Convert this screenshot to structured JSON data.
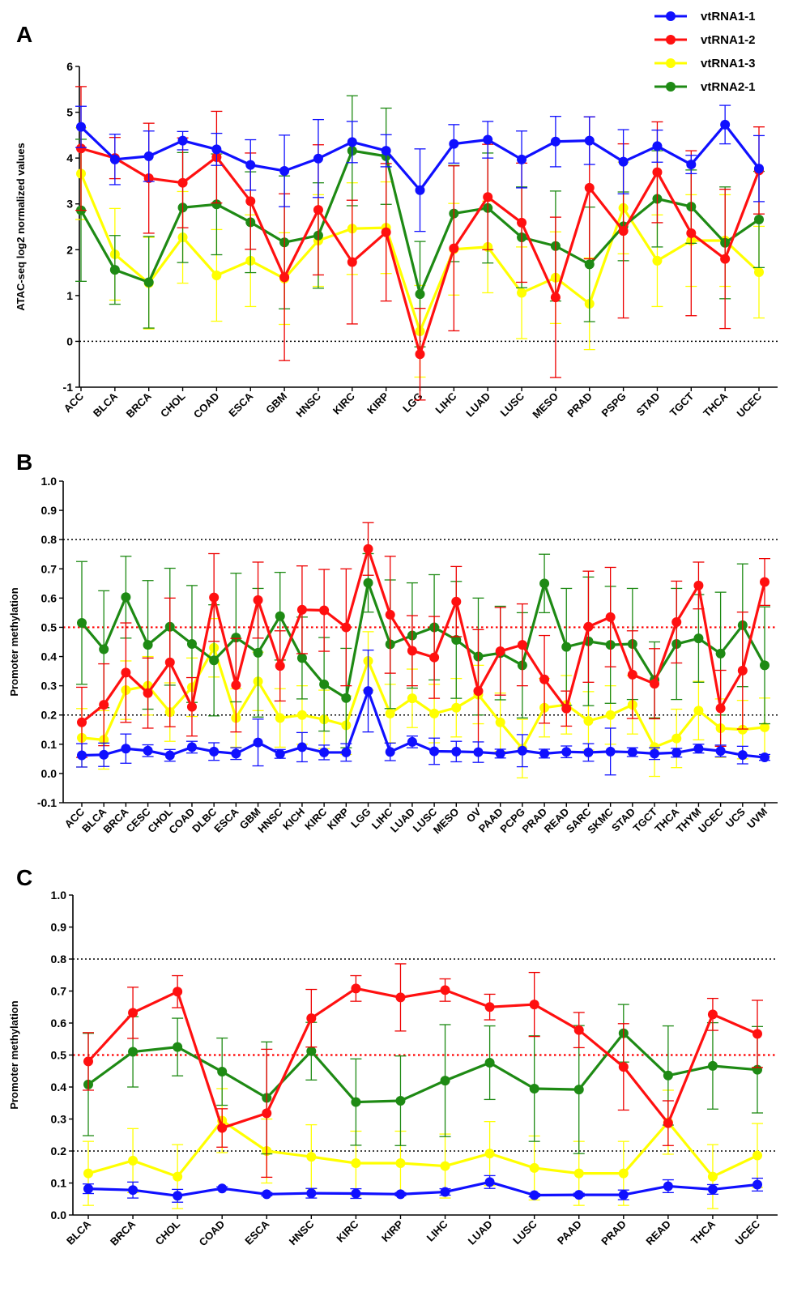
{
  "legend": [
    {
      "name": "vtRNA1-1",
      "color": "#1010ff"
    },
    {
      "name": "vtRNA1-2",
      "color": "#ff1010"
    },
    {
      "name": "vtRNA1-3",
      "color": "#ffff00"
    },
    {
      "name": "vtRNA2-1",
      "color": "#1e8a14"
    }
  ],
  "chart_data": [
    {
      "panel": "A",
      "type": "line",
      "ylabel": "ATAC-seq log2 normalized values",
      "ylim": [
        -1,
        6
      ],
      "yticks": [
        -1,
        0,
        1,
        2,
        3,
        4,
        5,
        6
      ],
      "reference_lines": [
        {
          "y": 0,
          "color": "#000000"
        }
      ],
      "categories": [
        "ACC",
        "BLCA",
        "BRCA",
        "CHOL",
        "COAD",
        "ESCA",
        "GBM",
        "HNSC",
        "KIRC",
        "KIRP",
        "LGG",
        "LIHC",
        "LUAD",
        "LUSC",
        "MESO",
        "PRAD",
        "PSPG",
        "STAD",
        "TGCT",
        "THCA",
        "UCEC"
      ],
      "series": [
        {
          "name": "vtRNA1-1",
          "values": [
            4.68,
            3.97,
            4.04,
            4.38,
            4.19,
            3.85,
            3.72,
            3.99,
            4.35,
            4.16,
            3.3,
            4.31,
            4.4,
            3.97,
            4.36,
            4.38,
            3.92,
            4.26,
            3.86,
            4.73,
            3.77
          ],
          "errors": [
            0.45,
            0.55,
            0.55,
            0.2,
            0.35,
            0.55,
            0.78,
            0.85,
            0.45,
            0.35,
            0.9,
            0.42,
            0.4,
            0.62,
            0.55,
            0.52,
            0.7,
            0.35,
            0.2,
            0.42,
            0.72
          ]
        },
        {
          "name": "vtRNA1-2",
          "values": [
            4.21,
            4.0,
            3.56,
            3.46,
            4.02,
            3.06,
            1.4,
            2.87,
            1.73,
            2.38,
            -0.28,
            2.03,
            3.15,
            2.59,
            0.96,
            3.35,
            2.41,
            3.69,
            2.36,
            1.8,
            3.73
          ],
          "errors": [
            1.35,
            0.45,
            1.2,
            0.98,
            1.0,
            1.05,
            1.82,
            1.42,
            1.35,
            1.5,
            1.0,
            1.8,
            1.15,
            1.3,
            1.75,
            1.55,
            1.9,
            1.1,
            1.8,
            1.52,
            0.95
          ]
        },
        {
          "name": "vtRNA1-3",
          "values": [
            3.66,
            1.9,
            1.27,
            2.27,
            1.44,
            1.76,
            1.37,
            2.2,
            2.46,
            2.48,
            0.22,
            2.01,
            2.06,
            1.06,
            1.39,
            0.82,
            2.91,
            1.76,
            2.2,
            2.2,
            1.51
          ]
        },
        {
          "name": "vtRNA2-1",
          "values": [
            2.86,
            1.56,
            1.29,
            2.92,
            2.99,
            2.6,
            2.16,
            2.31,
            4.16,
            4.04,
            1.03,
            2.79,
            2.91,
            2.27,
            2.08,
            1.68,
            2.51,
            3.11,
            2.94,
            2.15,
            2.66
          ],
          "errors": [
            1.55,
            0.75,
            1.0,
            1.2,
            1.1,
            1.1,
            1.45,
            1.15,
            1.2,
            1.05,
            1.15,
            1.05,
            1.2,
            1.1,
            1.2,
            1.25,
            0.75,
            1.05,
            0.8,
            1.22,
            1.05
          ]
        }
      ]
    },
    {
      "panel": "B",
      "type": "line",
      "ylabel": "Promoter methylation",
      "ylim": [
        -0.1,
        1.0
      ],
      "yticks": [
        -0.1,
        0.0,
        0.1,
        0.2,
        0.3,
        0.4,
        0.5,
        0.6,
        0.7,
        0.8,
        0.9,
        1.0
      ],
      "reference_lines": [
        {
          "y": 0.2,
          "color": "#000000"
        },
        {
          "y": 0.5,
          "color": "#ff0000"
        },
        {
          "y": 0.8,
          "color": "#000000"
        }
      ],
      "categories": [
        "ACC",
        "BLCA",
        "BRCA",
        "CESC",
        "CHOL",
        "COAD",
        "DLBC",
        "ESCA",
        "GBM",
        "HNSC",
        "KICH",
        "KIRC",
        "KIRP",
        "LGG",
        "LIHC",
        "LUAD",
        "LUSC",
        "MESO",
        "OV",
        "PAAD",
        "PCPG",
        "PRAD",
        "READ",
        "SARC",
        "SKMC",
        "STAD",
        "TGCT",
        "THCA",
        "THYM",
        "UCEC",
        "UCS",
        "UVM"
      ],
      "series": [
        {
          "name": "vtRNA1-1",
          "values": [
            0.062,
            0.064,
            0.085,
            0.078,
            0.062,
            0.09,
            0.075,
            0.068,
            0.106,
            0.067,
            0.09,
            0.072,
            0.072,
            0.282,
            0.074,
            0.108,
            0.076,
            0.075,
            0.073,
            0.068,
            0.078,
            0.068,
            0.074,
            0.072,
            0.075,
            0.073,
            0.068,
            0.071,
            0.085,
            0.077,
            0.063,
            0.055
          ],
          "errors": [
            0.04,
            0.04,
            0.05,
            0.02,
            0.02,
            0.02,
            0.03,
            0.02,
            0.08,
            0.015,
            0.05,
            0.025,
            0.03,
            0.14,
            0.03,
            0.02,
            0.045,
            0.035,
            0.035,
            0.015,
            0.055,
            0.015,
            0.02,
            0.03,
            0.08,
            0.015,
            0.02,
            0.015,
            0.015,
            0.02,
            0.03,
            0.01
          ]
        },
        {
          "name": "vtRNA1-2",
          "values": [
            0.175,
            0.235,
            0.345,
            0.275,
            0.38,
            0.228,
            0.602,
            0.302,
            0.593,
            0.368,
            0.56,
            0.558,
            0.5,
            0.768,
            0.543,
            0.42,
            0.397,
            0.588,
            0.282,
            0.418,
            0.44,
            0.322,
            0.222,
            0.502,
            0.535,
            0.338,
            0.307,
            0.518,
            0.643,
            0.223,
            0.352,
            0.655
          ],
          "errors": [
            0.12,
            0.14,
            0.17,
            0.12,
            0.22,
            0.1,
            0.15,
            0.16,
            0.13,
            0.12,
            0.15,
            0.14,
            0.2,
            0.09,
            0.2,
            0.12,
            0.14,
            0.12,
            0.21,
            0.15,
            0.14,
            0.15,
            0.06,
            0.19,
            0.17,
            0.15,
            0.12,
            0.14,
            0.08,
            0.13,
            0.2,
            0.08
          ]
        },
        {
          "name": "vtRNA1-3",
          "values": [
            0.122,
            0.115,
            0.285,
            0.3,
            0.21,
            0.295,
            0.43,
            0.19,
            0.315,
            0.19,
            0.2,
            0.185,
            0.165,
            0.385,
            0.205,
            0.257,
            0.205,
            0.225,
            0.27,
            0.175,
            0.085,
            0.225,
            0.235,
            0.18,
            0.2,
            0.235,
            0.09,
            0.12,
            0.215,
            0.155,
            0.15,
            0.158
          ]
        },
        {
          "name": "vtRNA2-1",
          "values": [
            0.515,
            0.425,
            0.603,
            0.44,
            0.502,
            0.443,
            0.387,
            0.465,
            0.413,
            0.538,
            0.395,
            0.305,
            0.258,
            0.652,
            0.442,
            0.472,
            0.5,
            0.457,
            0.4,
            0.412,
            0.37,
            0.65,
            0.433,
            0.452,
            0.44,
            0.443,
            0.32,
            0.443,
            0.462,
            0.41,
            0.507,
            0.37
          ],
          "errors": [
            0.21,
            0.2,
            0.14,
            0.22,
            0.2,
            0.2,
            0.19,
            0.22,
            0.22,
            0.15,
            0.14,
            0.16,
            0.17,
            0.1,
            0.22,
            0.18,
            0.18,
            0.2,
            0.2,
            0.16,
            0.18,
            0.1,
            0.2,
            0.22,
            0.2,
            0.19,
            0.13,
            0.19,
            0.15,
            0.21,
            0.21,
            0.2
          ]
        }
      ]
    },
    {
      "panel": "C",
      "type": "line",
      "ylabel": "Promoter methylation",
      "ylim": [
        0.0,
        1.0
      ],
      "yticks": [
        0.0,
        0.1,
        0.2,
        0.3,
        0.4,
        0.5,
        0.6,
        0.7,
        0.8,
        0.9,
        1.0
      ],
      "reference_lines": [
        {
          "y": 0.2,
          "color": "#000000"
        },
        {
          "y": 0.5,
          "color": "#ff0000"
        },
        {
          "y": 0.8,
          "color": "#000000"
        }
      ],
      "categories": [
        "BLCA",
        "BRCA",
        "CHOL",
        "COAD",
        "ESCA",
        "HNSC",
        "KIRC",
        "KIRP",
        "LIHC",
        "LUAD",
        "LUSC",
        "PAAD",
        "PRAD",
        "READ",
        "THCA",
        "UCEC"
      ],
      "series": [
        {
          "name": "vtRNA1-1",
          "values": [
            0.082,
            0.078,
            0.06,
            0.083,
            0.065,
            0.068,
            0.067,
            0.065,
            0.072,
            0.103,
            0.062,
            0.063,
            0.063,
            0.09,
            0.08,
            0.095
          ],
          "errors": [
            0.015,
            0.025,
            0.02,
            0.005,
            0.005,
            0.015,
            0.015,
            0.005,
            0.01,
            0.02,
            0.005,
            0.005,
            0.015,
            0.02,
            0.015,
            0.02
          ]
        },
        {
          "name": "vtRNA1-2",
          "values": [
            0.48,
            0.632,
            0.698,
            0.272,
            0.318,
            0.615,
            0.708,
            0.68,
            0.703,
            0.65,
            0.658,
            0.578,
            0.463,
            0.287,
            0.627,
            0.566
          ],
          "errors": [
            0.09,
            0.08,
            0.05,
            0.06,
            0.2,
            0.09,
            0.04,
            0.105,
            0.035,
            0.04,
            0.1,
            0.055,
            0.135,
            0.07,
            0.05,
            0.105
          ]
        },
        {
          "name": "vtRNA1-3",
          "values": [
            0.13,
            0.17,
            0.12,
            0.295,
            0.2,
            0.182,
            0.162,
            0.162,
            0.153,
            0.192,
            0.147,
            0.13,
            0.13,
            0.29,
            0.12,
            0.186
          ]
        },
        {
          "name": "vtRNA2-1",
          "values": [
            0.408,
            0.51,
            0.525,
            0.448,
            0.366,
            0.512,
            0.353,
            0.357,
            0.42,
            0.476,
            0.395,
            0.392,
            0.568,
            0.436,
            0.466,
            0.454
          ],
          "errors": [
            0.16,
            0.11,
            0.09,
            0.105,
            0.175,
            0.09,
            0.135,
            0.14,
            0.175,
            0.115,
            0.165,
            0.2,
            0.09,
            0.155,
            0.135,
            0.135
          ]
        }
      ]
    }
  ]
}
